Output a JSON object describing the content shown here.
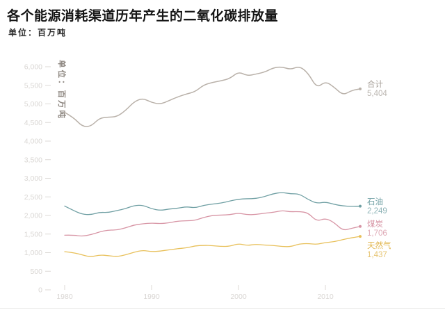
{
  "header": {
    "title": "各个能源消耗渠道历年产生的二氧化碳排放量",
    "unit_label": "单位：百万吨"
  },
  "chart_data": {
    "type": "line",
    "title": "各个能源消耗渠道历年产生的二氧化碳排放量",
    "unit": "百万吨",
    "y_axis_unit_label": "单位：百万吨",
    "grid": false,
    "legend_position": "line-end-right",
    "xlim": [
      1980,
      2014
    ],
    "ylim": [
      0,
      6000
    ],
    "x_ticks": [
      1980,
      1990,
      2000,
      2010
    ],
    "ytick_values": [
      0,
      500,
      1000,
      1500,
      2000,
      2500,
      3000,
      3500,
      4000,
      4500,
      5000,
      5500,
      6000
    ],
    "ytick_labels": [
      "0",
      "500",
      "1,000",
      "1,500",
      "2,000",
      "2,500",
      "3,000",
      "3,500",
      "4,000",
      "4,500",
      "5,000",
      "5,500",
      "6,000"
    ],
    "x": [
      1980,
      1981,
      1982,
      1983,
      1984,
      1985,
      1986,
      1987,
      1988,
      1989,
      1990,
      1991,
      1992,
      1993,
      1994,
      1995,
      1996,
      1997,
      1998,
      1999,
      2000,
      2001,
      2002,
      2003,
      2004,
      2005,
      2006,
      2007,
      2008,
      2009,
      2010,
      2011,
      2012,
      2013,
      2014
    ],
    "series": [
      {
        "key": "total",
        "name": "合计",
        "end_label": "5,404",
        "end_value": 5404,
        "color": "#b9b1a9",
        "values": [
          4772,
          4640,
          4394,
          4391,
          4620,
          4645,
          4654,
          4823,
          5062,
          5153,
          5039,
          4992,
          5086,
          5189,
          5268,
          5325,
          5512,
          5577,
          5622,
          5683,
          5866,
          5755,
          5802,
          5853,
          5970,
          5999,
          5921,
          6019,
          5833,
          5425,
          5608,
          5453,
          5234,
          5362,
          5404
        ]
      },
      {
        "key": "oil",
        "name": "石油",
        "end_label": "2,249",
        "end_value": 2249,
        "color": "#6f9fa3",
        "values": [
          2254,
          2137,
          2033,
          2019,
          2086,
          2077,
          2133,
          2182,
          2269,
          2276,
          2179,
          2134,
          2174,
          2194,
          2237,
          2203,
          2274,
          2306,
          2334,
          2388,
          2439,
          2452,
          2453,
          2508,
          2585,
          2623,
          2582,
          2580,
          2430,
          2324,
          2364,
          2297,
          2257,
          2243,
          2249
        ]
      },
      {
        "key": "coal",
        "name": "煤炭",
        "end_label": "1,706",
        "end_value": 1706,
        "color": "#d794a4",
        "values": [
          1469,
          1475,
          1439,
          1484,
          1557,
          1611,
          1605,
          1668,
          1745,
          1778,
          1796,
          1780,
          1800,
          1849,
          1857,
          1868,
          1947,
          2001,
          2011,
          2020,
          2065,
          2018,
          2026,
          2062,
          2084,
          2134,
          2098,
          2106,
          2072,
          1841,
          1928,
          1813,
          1593,
          1654,
          1706
        ]
      },
      {
        "key": "gas",
        "name": "天然气",
        "end_label": "1,437",
        "end_value": 1437,
        "color": "#e8c05a",
        "values": [
          1026,
          1003,
          942,
          884,
          939,
          922,
          892,
          938,
          1014,
          1065,
          1026,
          1042,
          1076,
          1107,
          1129,
          1183,
          1197,
          1191,
          1166,
          1170,
          1244,
          1191,
          1227,
          1204,
          1193,
          1166,
          1158,
          1237,
          1246,
          1221,
          1272,
          1291,
          1352,
          1399,
          1437
        ]
      }
    ]
  }
}
